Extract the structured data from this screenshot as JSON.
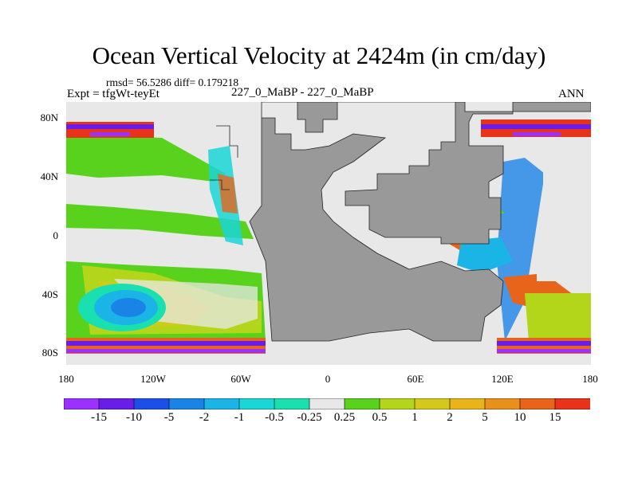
{
  "title": "Ocean Vertical Velocity at 2424m (in cm/day)",
  "stats": "rmsd= 56.5286 diff= 0.179218",
  "expt": "Expt = tfgWt-teyEt",
  "subtitle": "227_0_MaBP - 227_0_MaBP",
  "season": "ANN",
  "lat_ticks": [
    "80N",
    "40N",
    "0",
    "40S",
    "80S"
  ],
  "lon_ticks": [
    "180",
    "120W",
    "60W",
    "0",
    "60E",
    "120E",
    "180"
  ],
  "land_color": "#999999",
  "colorbar": {
    "colors": [
      "#9b30ff",
      "#6a1ce8",
      "#1c4fe6",
      "#1a83e6",
      "#1ab4e6",
      "#1ad6d6",
      "#1ae0b0",
      "#e8e8e8",
      "#58d21c",
      "#b4d61a",
      "#d6c81a",
      "#e8b41a",
      "#e8901a",
      "#e8641a",
      "#e8321a"
    ],
    "labels": [
      "-15",
      "-10",
      "-5",
      "-2",
      "-1",
      "-0.5",
      "-0.25",
      "0.25",
      "0.5",
      "1",
      "2",
      "5",
      "10",
      "15"
    ]
  }
}
